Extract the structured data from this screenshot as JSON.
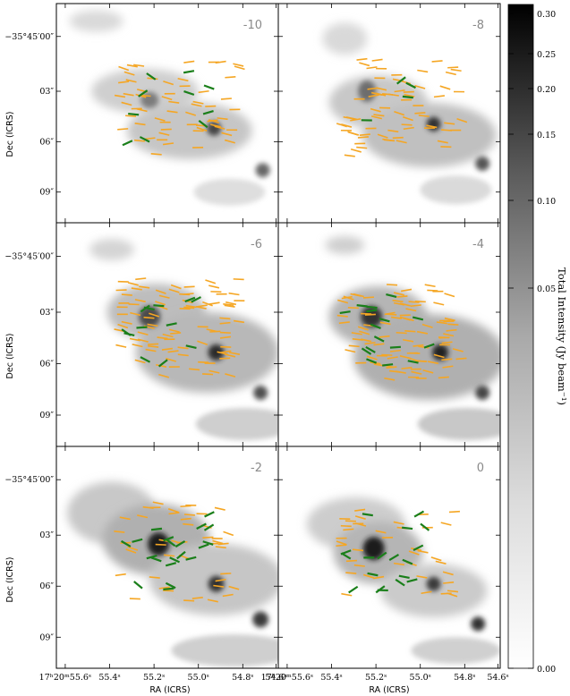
{
  "chart_data": {
    "type": "heatmap",
    "description_of_marks": "grayscale dust continuum intensity with overlaid polarization segments (orange and green)",
    "panels": [
      {
        "velocity_label": "-10"
      },
      {
        "velocity_label": "-8"
      },
      {
        "velocity_label": "-6"
      },
      {
        "velocity_label": "-4"
      },
      {
        "velocity_label": "-2"
      },
      {
        "velocity_label": "0"
      }
    ],
    "xlabel": "RA (ICRS)",
    "ylabel": "Dec (ICRS)",
    "x_ticks": [
      "17ʰ20ᵐ55.6ˢ",
      "55.4ˢ",
      "55.2ˢ",
      "55.0ˢ",
      "54.8ˢ",
      "54.6ˢ"
    ],
    "x_ticks_right": [
      "17ʰ20ᵐ55.6ˢ",
      "55.4ˢ",
      "55.2ˢ",
      "55.0ˢ",
      "54.8ˢ",
      "54.6ˢ"
    ],
    "y_ticks": [
      "−35°45′00″",
      "03″",
      "06″",
      "09″"
    ],
    "colorbar": {
      "label": "Total Intensity (Jy beam⁻¹)",
      "ticks": [
        "0.00",
        "0.05",
        "0.10",
        "0.15",
        "0.20",
        "0.25",
        "0.30"
      ],
      "range": [
        0.0,
        0.31
      ],
      "colormap": "gray_r"
    },
    "segment_colors": {
      "orange": "#f5a623",
      "green": "#1a7f1a"
    },
    "background": "#ffffff"
  }
}
